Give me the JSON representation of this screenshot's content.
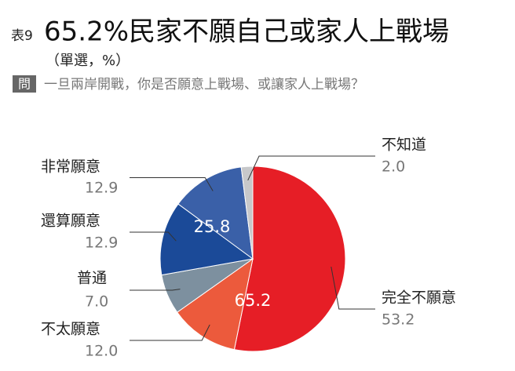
{
  "chart_data": {
    "type": "pie",
    "table_no": "表9",
    "title": "65.2%民家不願自己或家人上戰場",
    "subtitle": "（單選，%）",
    "question_tag": "問",
    "question": "一旦兩岸開戰，你是否願意上戰場、或讓家人上戰場？",
    "categories": [
      "完全不願意",
      "不太願意",
      "普通",
      "還算願意",
      "非常願意",
      "不知道"
    ],
    "values": [
      53.2,
      12.0,
      7.0,
      12.9,
      12.9,
      2.0
    ],
    "value_labels": [
      "53.2",
      "12.0",
      "7.0",
      "12.9",
      "12.9",
      "2.0"
    ],
    "colors": [
      "#e61e26",
      "#ec5a3c",
      "#7d909f",
      "#1b4a98",
      "#3a60a8",
      "#c7c8ca"
    ],
    "group_values": [
      65.2,
      25.8
    ]
  }
}
